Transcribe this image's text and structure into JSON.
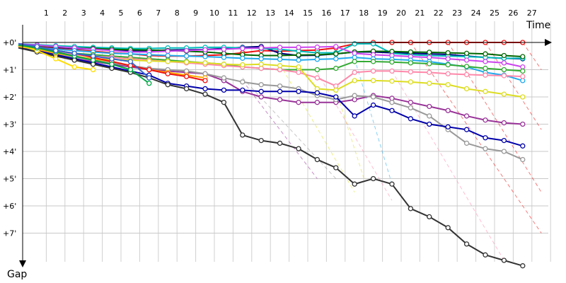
{
  "chart_data": {
    "type": "line",
    "x_axis_label": "Time",
    "y_axis_label": "Gap",
    "x_ticks": [
      "1",
      "2",
      "3",
      "4",
      "5",
      "6",
      "7",
      "8",
      "9",
      "10",
      "11",
      "12",
      "13",
      "14",
      "15",
      "16",
      "17",
      "18",
      "19",
      "20",
      "21",
      "22",
      "23",
      "24",
      "25",
      "26",
      "27"
    ],
    "y_ticks": [
      "+0'",
      "+1'",
      "+2'",
      "+3'",
      "+4'",
      "+5'",
      "+6'",
      "+7'"
    ],
    "xlim": [
      0,
      28
    ],
    "ylim": [
      0,
      8
    ],
    "grid": true,
    "series": [
      {
        "color": "#ee1111",
        "values": [
          0.1,
          0.15,
          0.22,
          0.28,
          0.32,
          0.38,
          0.42,
          0.48,
          0.5,
          0.5,
          0.48,
          0.45,
          0.38,
          0.3,
          0.32,
          0.3,
          0.28,
          0.2,
          0.05,
          0,
          0,
          0,
          0,
          0,
          0,
          0,
          0,
          0
        ]
      },
      {
        "color": "#000080",
        "values": [
          0.05,
          0.1,
          0.18,
          0.22,
          0.25,
          0.28,
          0.3,
          0.3,
          0.28,
          0.27,
          0.26,
          0.22,
          0.18,
          0.15,
          0.4,
          0.48,
          0.47,
          0.42,
          0.35,
          0.35,
          0.38,
          0.4,
          0.42,
          0.44,
          0.5,
          0.55,
          0.58,
          0.6
        ]
      },
      {
        "color": "#00bbbb",
        "values": [
          0.05,
          0.08,
          0.12,
          0.15,
          0.18,
          0.2,
          0.22,
          0.22,
          0.2,
          0.2,
          0.18,
          0.18,
          0.2,
          0.22,
          0.25,
          0.32,
          0.38,
          0.38,
          0.05,
          0.05,
          0.4,
          0.45,
          0.48,
          0.5,
          0.52,
          0.55,
          0.58,
          0.58
        ]
      },
      {
        "color": "#006600",
        "values": [
          0.08,
          0.12,
          0.16,
          0.2,
          0.22,
          0.25,
          0.27,
          0.28,
          0.3,
          0.32,
          0.35,
          0.4,
          0.45,
          0.48,
          0.48,
          0.46,
          0.45,
          0.42,
          0.35,
          0.32,
          0.33,
          0.35,
          0.36,
          0.38,
          0.4,
          0.42,
          0.48,
          0.52
        ]
      },
      {
        "color": "#cc44ee",
        "values": [
          0.05,
          0.1,
          0.15,
          0.2,
          0.25,
          0.3,
          0.35,
          0.35,
          0.32,
          0.3,
          0.27,
          0.25,
          0.22,
          0.2,
          0.18,
          0.18,
          0.17,
          0.15,
          0.4,
          0.45,
          0.48,
          0.52,
          0.55,
          0.6,
          0.65,
          0.7,
          0.75,
          0.9
        ]
      },
      {
        "color": "#22aaee",
        "values": [
          0.1,
          0.18,
          0.25,
          0.3,
          0.35,
          0.4,
          0.42,
          0.45,
          0.48,
          0.5,
          0.52,
          0.55,
          0.58,
          0.6,
          0.62,
          0.65,
          0.62,
          0.6,
          0.55,
          0.6,
          0.62,
          0.65,
          0.7,
          0.8,
          0.9,
          1.1,
          1.2,
          1.4
        ]
      },
      {
        "color": "#33aa33",
        "values": [
          0.1,
          0.2,
          0.3,
          0.4,
          0.45,
          0.5,
          0.55,
          0.6,
          0.65,
          0.7,
          0.75,
          0.8,
          0.9,
          0.95,
          1.0,
          1.0,
          1.0,
          0.95,
          0.7,
          0.7,
          0.72,
          0.75,
          0.78,
          0.82,
          0.88,
          0.95,
          1.0,
          1.05
        ]
      },
      {
        "color": "#ff88aa",
        "values": [
          0.1,
          0.25,
          0.35,
          0.45,
          0.5,
          0.55,
          0.6,
          0.65,
          0.7,
          0.75,
          0.8,
          0.85,
          0.9,
          0.95,
          1.0,
          1.1,
          1.3,
          1.6,
          1.1,
          1.05,
          1.05,
          1.08,
          1.1,
          1.15,
          1.18,
          1.2,
          1.22,
          1.25
        ]
      },
      {
        "color": "#dddd22",
        "values": [
          0.1,
          0.25,
          0.4,
          0.55,
          0.6,
          0.62,
          0.65,
          0.68,
          0.7,
          0.72,
          0.75,
          0.8,
          0.82,
          0.8,
          0.85,
          0.9,
          1.7,
          1.75,
          1.4,
          1.4,
          1.42,
          1.45,
          1.5,
          1.55,
          1.7,
          1.8,
          1.9,
          2.0
        ]
      },
      {
        "color": "#993399",
        "values": [
          0.15,
          0.3,
          0.45,
          0.6,
          0.7,
          0.8,
          0.9,
          1.0,
          1.05,
          1.1,
          1.15,
          1.4,
          1.8,
          2.0,
          2.1,
          2.2,
          2.2,
          2.2,
          2.1,
          1.95,
          2.05,
          2.2,
          2.35,
          2.5,
          2.7,
          2.85,
          2.95,
          3.0
        ]
      },
      {
        "color": "#999999",
        "values": [
          0.1,
          0.25,
          0.4,
          0.55,
          0.65,
          0.75,
          0.85,
          0.95,
          1.0,
          1.05,
          1.15,
          1.3,
          1.45,
          1.55,
          1.6,
          1.7,
          1.95,
          2.1,
          1.95,
          2.0,
          2.2,
          2.4,
          2.7,
          3.2,
          3.7,
          3.9,
          4.0,
          4.3
        ]
      },
      {
        "color": "#0000aa",
        "values": [
          0.15,
          0.3,
          0.45,
          0.6,
          0.75,
          0.9,
          1.05,
          1.2,
          1.5,
          1.6,
          1.7,
          1.75,
          1.75,
          1.8,
          1.8,
          1.8,
          1.85,
          2.0,
          2.7,
          2.3,
          2.5,
          2.8,
          3.0,
          3.1,
          3.2,
          3.5,
          3.6,
          3.8
        ]
      },
      {
        "color": "#333333",
        "values": [
          0.2,
          0.35,
          0.5,
          0.65,
          0.8,
          0.95,
          1.1,
          1.3,
          1.55,
          1.7,
          1.9,
          2.2,
          3.4,
          3.6,
          3.7,
          3.9,
          4.3,
          4.6,
          5.2,
          5.0,
          5.2,
          6.1,
          6.4,
          6.8,
          7.4,
          7.8,
          8.0,
          8.2
        ]
      },
      {
        "color": "#ffaa00",
        "values": [
          0.15,
          0.25,
          0.4,
          0.5,
          0.6,
          0.7,
          0.85,
          1.0,
          1.1,
          1.2,
          1.3
        ]
      },
      {
        "color": "#ee1111",
        "values": [
          0.1,
          0.2,
          0.3,
          0.4,
          0.55,
          0.7,
          0.85,
          1.0,
          1.15,
          1.25,
          1.4
        ]
      },
      {
        "color": "#ffdd00",
        "values": [
          0.1,
          0.3,
          0.6,
          0.9,
          1.0
        ]
      },
      {
        "color": "#00aa44",
        "values": [
          0.1,
          0.2,
          0.35,
          0.5,
          0.65,
          0.8,
          1.0,
          1.5
        ]
      },
      {
        "color": "#3366cc",
        "values": [
          0.05,
          0.15,
          0.3,
          0.4,
          0.5,
          0.6,
          0.7,
          1.3
        ]
      }
    ],
    "dropouts": [
      {
        "color": "#22aaee",
        "from": [
          18,
          0.6
        ],
        "to": [
          20,
          5.2
        ]
      },
      {
        "color": "#ff88aa",
        "from": [
          20,
          1.05
        ],
        "to": [
          26,
          8.0
        ]
      },
      {
        "color": "#dddd22",
        "from": [
          17,
          1.75
        ],
        "to": [
          18.5,
          5.0
        ]
      },
      {
        "color": "#ee1111",
        "from": [
          21,
          0
        ],
        "to": [
          28,
          7.0
        ]
      },
      {
        "color": "#ee1111",
        "from": [
          23,
          0
        ],
        "to": [
          28,
          5.5
        ]
      },
      {
        "color": "#ee1111",
        "from": [
          25,
          0
        ],
        "to": [
          28,
          3.2
        ]
      },
      {
        "color": "#ee1111",
        "from": [
          27,
          0
        ],
        "to": [
          28,
          1.0
        ]
      },
      {
        "color": "#999999",
        "from": [
          12,
          1.3
        ],
        "to": [
          17,
          5.0
        ]
      },
      {
        "color": "#993399",
        "from": [
          12,
          1.4
        ],
        "to": [
          16,
          5.0
        ]
      },
      {
        "color": "#dddd22",
        "from": [
          14,
          0.8
        ],
        "to": [
          18,
          5.5
        ]
      },
      {
        "color": "#ff88aa",
        "from": [
          16,
          1.1
        ],
        "to": [
          20,
          5.8
        ]
      }
    ]
  }
}
